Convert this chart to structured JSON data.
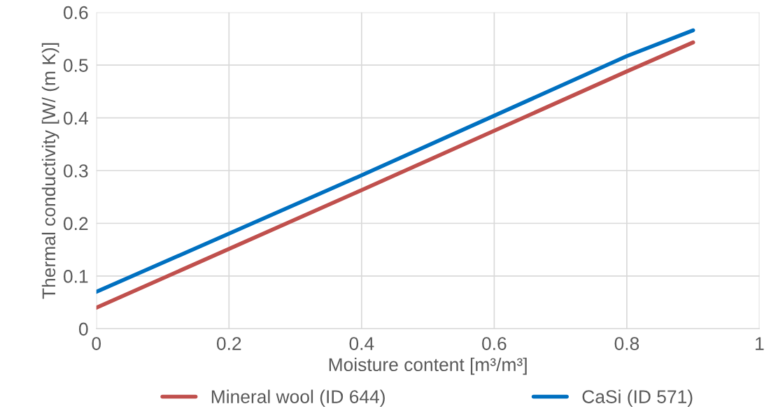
{
  "chart_data": {
    "type": "line",
    "xlabel": "Moisture content [m³/m³]",
    "ylabel": "Thermal conductivity [W/ (m K)]",
    "xlim": [
      0,
      1
    ],
    "xticks": [
      0,
      0.2,
      0.4,
      0.6,
      0.8,
      1
    ],
    "ylim": [
      0,
      0.6
    ],
    "yticks": [
      0,
      0.1,
      0.2,
      0.3,
      0.4,
      0.5,
      0.6
    ],
    "grid": true,
    "legend": "bottom",
    "marker": "none",
    "line_style": "solid",
    "series": [
      {
        "name": "Mineral wool (ID 644)",
        "color": "#c0504d",
        "x": [
          0,
          0.4,
          0.8,
          0.9
        ],
        "values": [
          0.04,
          0.263,
          0.488,
          0.543
        ]
      },
      {
        "name": "CaSi (ID 571)",
        "color": "#0070c0",
        "x": [
          0,
          0.4,
          0.8,
          0.9
        ],
        "values": [
          0.07,
          0.291,
          0.517,
          0.566
        ]
      }
    ]
  }
}
